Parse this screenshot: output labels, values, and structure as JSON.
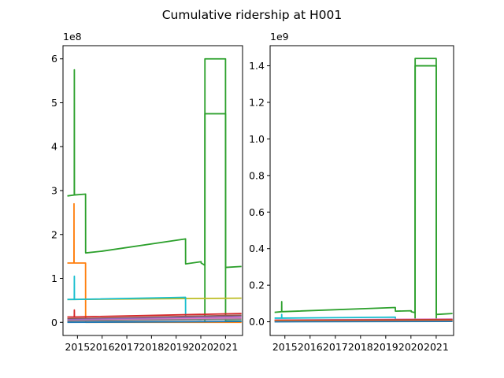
{
  "figure": {
    "title": "Cumulative ridership at H001"
  },
  "chart_data": [
    {
      "type": "line",
      "title": "Cumulative ridership at H001",
      "xlabel": "",
      "ylabel": "",
      "offset_label": "1e8",
      "x_range": [
        "2014-06-01",
        "2021-09-10"
      ],
      "xticks": [
        "2015",
        "2016",
        "2017",
        "2018",
        "2019",
        "2020",
        "2021"
      ],
      "ylim": [
        -0.3,
        6.3
      ],
      "yticks": [
        0,
        1,
        2,
        3,
        4,
        5,
        6
      ],
      "grid": false,
      "legend": "none",
      "series": [
        {
          "color": "#2ca02c",
          "points": [
            [
              "2014-08-15",
              2.88
            ],
            [
              "2014-11-15",
              2.9
            ],
            [
              "2014-11-16",
              5.75
            ],
            [
              "2014-11-17",
              2.9
            ],
            [
              "2015-05-01",
              2.92
            ],
            [
              "2015-05-02",
              1.58
            ],
            [
              "2016-01-01",
              1.62
            ],
            [
              "2019-05-20",
              1.9
            ],
            [
              "2019-05-21",
              1.33
            ],
            [
              "2020-01-05",
              1.38
            ],
            [
              "2020-01-06",
              1.35
            ],
            [
              "2020-03-01",
              1.3
            ],
            [
              "2020-03-02",
              6.0
            ],
            [
              "2021-01-01",
              6.0
            ],
            [
              "2021-01-02",
              1.25
            ],
            [
              "2021-08-15",
              1.27
            ]
          ]
        },
        {
          "color": "#2ca02c",
          "points": [
            [
              "2020-03-01",
              0.03
            ],
            [
              "2020-03-02",
              4.75
            ],
            [
              "2021-01-01",
              4.75
            ],
            [
              "2021-01-02",
              0.03
            ],
            [
              "2021-08-15",
              0.03
            ]
          ]
        },
        {
          "color": "#ff7f0e",
          "points": [
            [
              "2014-08-15",
              1.35
            ],
            [
              "2014-11-10",
              1.35
            ],
            [
              "2014-11-11",
              2.7
            ],
            [
              "2014-11-12",
              1.35
            ],
            [
              "2015-05-01",
              1.35
            ],
            [
              "2015-05-02",
              0.0
            ],
            [
              "2021-08-15",
              0.0
            ]
          ]
        },
        {
          "color": "#bcbd22",
          "points": [
            [
              "2014-08-15",
              0.52
            ],
            [
              "2021-08-15",
              0.55
            ]
          ]
        },
        {
          "color": "#17becf",
          "points": [
            [
              "2014-08-15",
              0.52
            ],
            [
              "2014-11-15",
              0.52
            ],
            [
              "2014-11-16",
              1.05
            ],
            [
              "2014-11-17",
              0.52
            ],
            [
              "2019-05-20",
              0.57
            ],
            [
              "2019-05-21",
              0.08
            ],
            [
              "2020-01-01",
              0.06
            ]
          ]
        },
        {
          "color": "#d62728",
          "points": [
            [
              "2014-08-15",
              0.12
            ],
            [
              "2014-11-15",
              0.12
            ],
            [
              "2014-11-16",
              0.28
            ],
            [
              "2014-11-17",
              0.12
            ],
            [
              "2021-08-15",
              0.2
            ]
          ]
        },
        {
          "color": "#8c564b",
          "points": [
            [
              "2014-08-15",
              0.08
            ],
            [
              "2021-08-15",
              0.16
            ]
          ]
        },
        {
          "color": "#9467bd",
          "points": [
            [
              "2014-08-15",
              0.06
            ],
            [
              "2021-08-15",
              0.13
            ]
          ]
        },
        {
          "color": "#e377c2",
          "points": [
            [
              "2014-08-15",
              0.04
            ],
            [
              "2021-08-15",
              0.1
            ]
          ]
        },
        {
          "color": "#7f7f7f",
          "points": [
            [
              "2014-08-15",
              0.03
            ],
            [
              "2021-08-15",
              0.07
            ]
          ]
        },
        {
          "color": "#1f77b4",
          "points": [
            [
              "2014-08-15",
              0.0
            ],
            [
              "2021-08-15",
              0.02
            ]
          ]
        }
      ]
    },
    {
      "type": "line",
      "title": "Cumulative ridership at H001",
      "xlabel": "",
      "ylabel": "",
      "offset_label": "1e9",
      "x_range": [
        "2014-06-01",
        "2021-09-10"
      ],
      "xticks": [
        "2015",
        "2016",
        "2017",
        "2018",
        "2019",
        "2020",
        "2021"
      ],
      "ylim": [
        -0.075,
        1.51
      ],
      "yticks": [
        "0.0",
        "0.2",
        "0.4",
        "0.6",
        "0.8",
        "1.0",
        "1.2",
        "1.4"
      ],
      "grid": false,
      "legend": "none",
      "series": [
        {
          "color": "#2ca02c",
          "points": [
            [
              "2014-08-15",
              0.052
            ],
            [
              "2014-11-15",
              0.055
            ],
            [
              "2014-11-16",
              0.11
            ],
            [
              "2014-11-17",
              0.055
            ],
            [
              "2019-05-20",
              0.078
            ],
            [
              "2019-05-21",
              0.058
            ],
            [
              "2020-01-05",
              0.06
            ],
            [
              "2020-01-06",
              0.055
            ],
            [
              "2020-03-01",
              0.05
            ],
            [
              "2020-03-02",
              1.44
            ],
            [
              "2021-01-01",
              1.44
            ],
            [
              "2021-01-02",
              0.04
            ],
            [
              "2021-08-15",
              0.045
            ]
          ]
        },
        {
          "color": "#2ca02c",
          "points": [
            [
              "2020-03-01",
              0.01
            ],
            [
              "2020-03-02",
              1.4
            ],
            [
              "2021-01-01",
              1.4
            ],
            [
              "2021-01-02",
              0.01
            ],
            [
              "2021-08-15",
              0.01
            ]
          ]
        },
        {
          "color": "#17becf",
          "points": [
            [
              "2014-08-15",
              0.02
            ],
            [
              "2014-11-15",
              0.02
            ],
            [
              "2014-11-16",
              0.04
            ],
            [
              "2014-11-17",
              0.02
            ],
            [
              "2019-05-20",
              0.025
            ],
            [
              "2019-05-21",
              0.01
            ]
          ]
        },
        {
          "color": "#e377c2",
          "points": [
            [
              "2014-08-15",
              0.01
            ],
            [
              "2021-08-15",
              0.015
            ]
          ]
        },
        {
          "color": "#8c564b",
          "points": [
            [
              "2014-08-15",
              0.008
            ],
            [
              "2021-08-15",
              0.012
            ]
          ]
        },
        {
          "color": "#d62728",
          "points": [
            [
              "2014-08-15",
              0.006
            ],
            [
              "2021-08-15",
              0.01
            ]
          ]
        },
        {
          "color": "#ff7f0e",
          "points": [
            [
              "2014-08-15",
              0.004
            ],
            [
              "2021-08-15",
              0.005
            ]
          ]
        },
        {
          "color": "#1f77b4",
          "points": [
            [
              "2014-08-15",
              0.0
            ],
            [
              "2021-08-15",
              0.002
            ]
          ]
        }
      ]
    }
  ]
}
